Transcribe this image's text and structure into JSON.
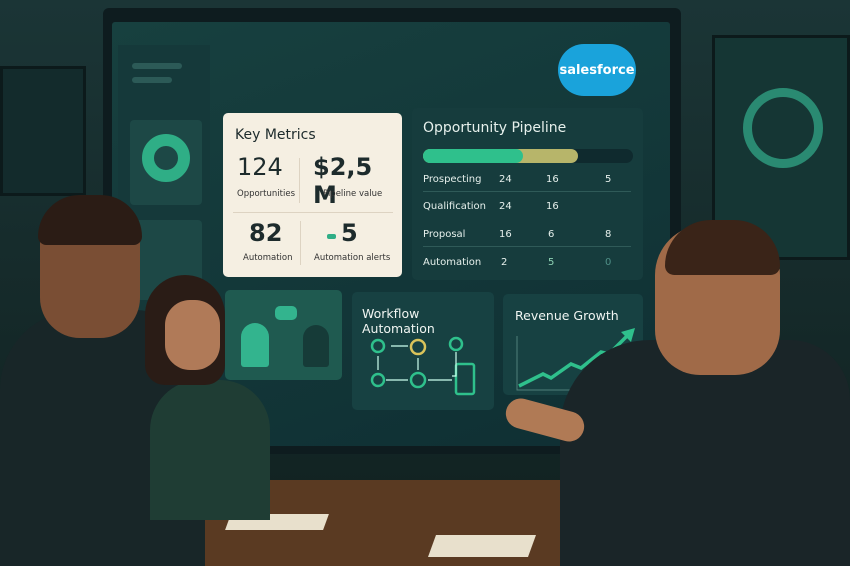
{
  "brand": "salesforce",
  "key_metrics": {
    "title": "Key Metrics",
    "items": [
      {
        "value": "124",
        "label": "Opportunities"
      },
      {
        "value": "$2,5 M",
        "label": "Pipeline value"
      },
      {
        "value": "82",
        "label": "Automation"
      },
      {
        "value": "5",
        "label": "Automation alerts"
      }
    ]
  },
  "pipeline": {
    "title": "Opportunity Pipeline",
    "rows": [
      {
        "stage": "Prospecting",
        "a": "24",
        "b": "16",
        "c": "5"
      },
      {
        "stage": "Qualification",
        "a": "24",
        "b": "16",
        "c": ""
      },
      {
        "stage": "Proposal",
        "a": "16",
        "b": "6",
        "c": "8"
      },
      {
        "stage": "Automation",
        "a": "2",
        "b": "5",
        "c": "0"
      }
    ],
    "colors": {
      "green": "#2fc08c",
      "olive": "#b7b56a",
      "track": "#0f2a2e"
    }
  },
  "workflow": {
    "title": "Workflow Automation"
  },
  "revenue": {
    "title": "Revenue Growth"
  }
}
